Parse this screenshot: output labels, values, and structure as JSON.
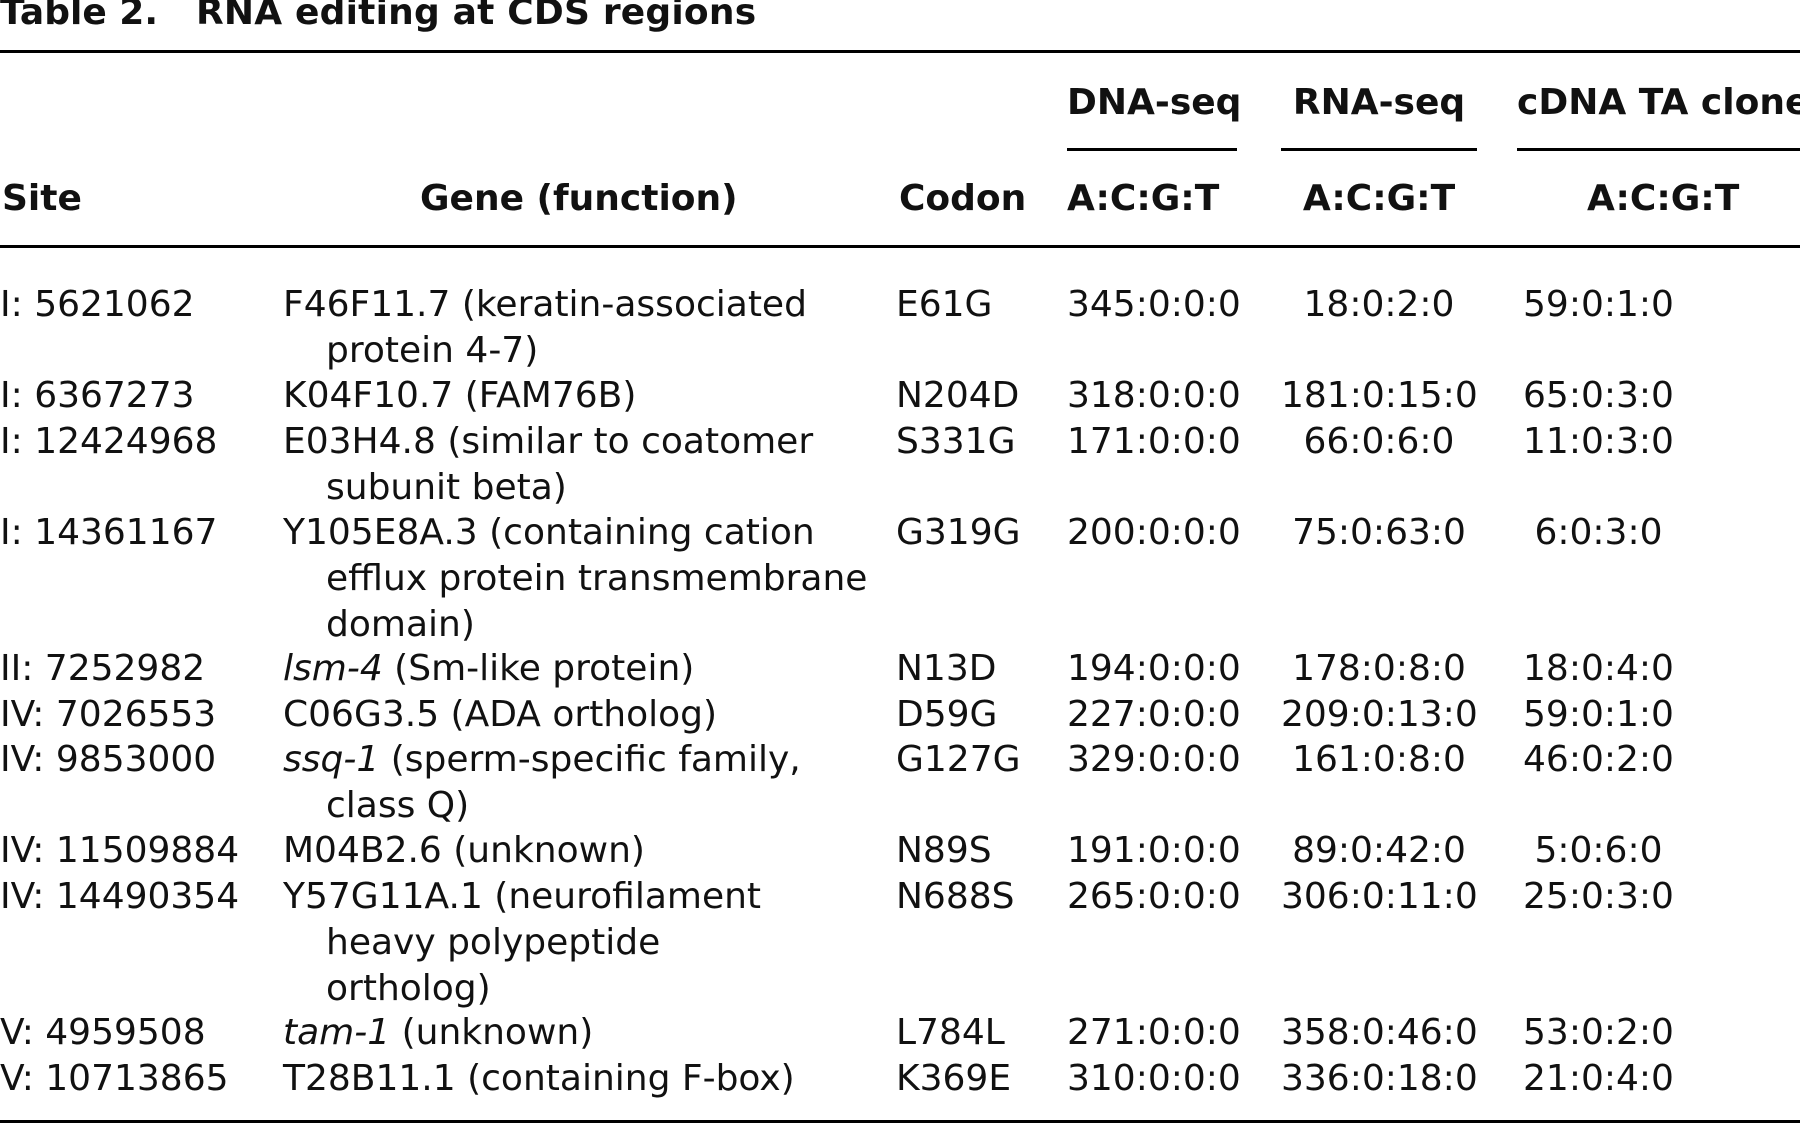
{
  "caption": {
    "label": "Table 2.",
    "title": "RNA editing at CDS regions"
  },
  "header": {
    "groups": {
      "dna": "DNA-seq",
      "rna": "RNA-seq",
      "cdna": "cDNA TA clone"
    },
    "columns": {
      "site": "Site",
      "gene": "Gene (function)",
      "codon": "Codon",
      "dna": "A:C:G:T",
      "rna": "A:C:G:T",
      "cdna": "A:C:G:T"
    }
  },
  "rows": [
    {
      "site": "I: 5621062",
      "gene_lines": [
        "F46F11.7 (keratin-associated",
        "protein 4-7)"
      ],
      "gene_italic": "",
      "codon": "E61G",
      "dna": "345:0:0:0",
      "rna": "18:0:2:0",
      "cdna": "59:0:1:0"
    },
    {
      "site": "I: 6367273",
      "gene_lines": [
        "K04F10.7 (FAM76B)"
      ],
      "gene_italic": "",
      "codon": "N204D",
      "dna": "318:0:0:0",
      "rna": "181:0:15:0",
      "cdna": "65:0:3:0"
    },
    {
      "site": "I: 12424968",
      "gene_lines": [
        "E03H4.8 (similar to coatomer",
        "subunit beta)"
      ],
      "gene_italic": "",
      "codon": "S331G",
      "dna": "171:0:0:0",
      "rna": "66:0:6:0",
      "cdna": "11:0:3:0"
    },
    {
      "site": "I: 14361167",
      "gene_lines": [
        "Y105E8A.3 (containing cation",
        "efflux protein transmembrane",
        "domain)"
      ],
      "gene_italic": "",
      "codon": "G319G",
      "dna": "200:0:0:0",
      "rna": "75:0:63:0",
      "cdna": "6:0:3:0"
    },
    {
      "site": "II: 7252982",
      "gene_lines": [
        " (Sm-like protein)"
      ],
      "gene_italic": "lsm-4",
      "codon": "N13D",
      "dna": "194:0:0:0",
      "rna": "178:0:8:0",
      "cdna": "18:0:4:0"
    },
    {
      "site": "IV: 7026553",
      "gene_lines": [
        "C06G3.5 (ADA ortholog)"
      ],
      "gene_italic": "",
      "codon": "D59G",
      "dna": "227:0:0:0",
      "rna": "209:0:13:0",
      "cdna": "59:0:1:0"
    },
    {
      "site": "IV: 9853000",
      "gene_lines": [
        " (sperm-specific family,",
        "class Q)"
      ],
      "gene_italic": "ssq-1",
      "codon": "G127G",
      "dna": "329:0:0:0",
      "rna": "161:0:8:0",
      "cdna": "46:0:2:0"
    },
    {
      "site": "IV: 11509884",
      "gene_lines": [
        "M04B2.6 (unknown)"
      ],
      "gene_italic": "",
      "codon": "N89S",
      "dna": "191:0:0:0",
      "rna": "89:0:42:0",
      "cdna": "5:0:6:0"
    },
    {
      "site": "IV: 14490354",
      "gene_lines": [
        "Y57G11A.1 (neurofilament",
        "heavy polypeptide",
        "ortholog)"
      ],
      "gene_italic": "",
      "codon": "N688S",
      "dna": "265:0:0:0",
      "rna": "306:0:11:0",
      "cdna": "25:0:3:0"
    },
    {
      "site": "V: 4959508",
      "gene_lines": [
        " (unknown)"
      ],
      "gene_italic": "tam-1",
      "codon": "L784L",
      "dna": "271:0:0:0",
      "rna": "358:0:46:0",
      "cdna": "53:0:2:0"
    },
    {
      "site": "V: 10713865",
      "gene_lines": [
        "T28B11.1 (containing F-box)"
      ],
      "gene_italic": "",
      "codon": "K369E",
      "dna": "310:0:0:0",
      "rna": "336:0:18:0",
      "cdna": "21:0:4:0"
    }
  ]
}
